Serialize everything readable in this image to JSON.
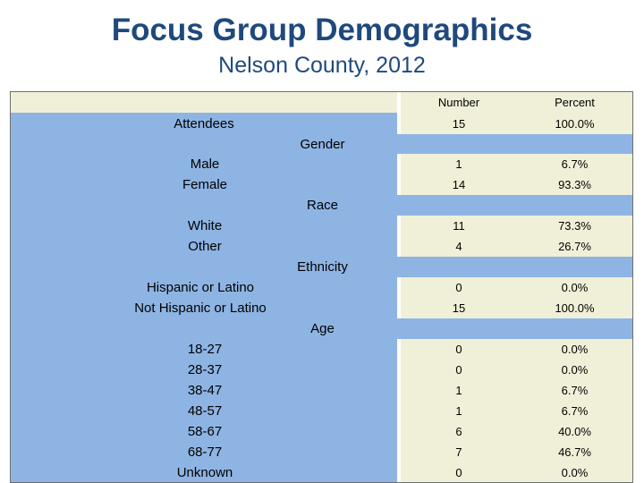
{
  "title": "Focus Group Demographics",
  "subtitle": "Nelson County, 2012",
  "headers": {
    "number": "Number",
    "percent": "Percent"
  },
  "attendees": {
    "label": "Attendees",
    "number": "15",
    "percent": "100.0%"
  },
  "gender": {
    "label": "Gender",
    "rows": [
      {
        "label": "Male",
        "number": "1",
        "percent": "6.7%"
      },
      {
        "label": "Female",
        "number": "14",
        "percent": "93.3%"
      }
    ]
  },
  "race": {
    "label": "Race",
    "rows": [
      {
        "label": "White",
        "number": "11",
        "percent": "73.3%"
      },
      {
        "label": "Other",
        "number": "4",
        "percent": "26.7%"
      }
    ]
  },
  "ethnicity": {
    "label": "Ethnicity",
    "rows": [
      {
        "label": "Hispanic or Latino",
        "number": "0",
        "percent": "0.0%"
      },
      {
        "label": "Not Hispanic or Latino",
        "number": "15",
        "percent": "100.0%"
      }
    ]
  },
  "age": {
    "label": "Age",
    "rows": [
      {
        "label": "18-27",
        "number": "0",
        "percent": "0.0%"
      },
      {
        "label": "28-37",
        "number": "0",
        "percent": "0.0%"
      },
      {
        "label": "38-47",
        "number": "1",
        "percent": "6.7%"
      },
      {
        "label": "48-57",
        "number": "1",
        "percent": "6.7%"
      },
      {
        "label": "58-67",
        "number": "6",
        "percent": "40.0%"
      },
      {
        "label": "68-77",
        "number": "7",
        "percent": "46.7%"
      },
      {
        "label": "Unknown",
        "number": "0",
        "percent": "0.0%"
      }
    ]
  },
  "colors": {
    "title": "#1f497d",
    "label_fill": "#8eb4e3",
    "value_fill": "#f0f0d8"
  }
}
